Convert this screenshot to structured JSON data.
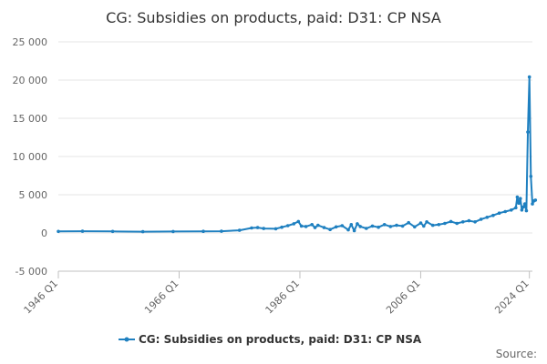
{
  "chart_data": {
    "type": "line",
    "title": "CG: Subsidies on products, paid: D31: CP NSA",
    "xlabel": "",
    "ylabel": "",
    "x_tick_labels": [
      "1946 Q1",
      "1966 Q1",
      "1986 Q1",
      "2006 Q1",
      "2024 Q1"
    ],
    "x_tick_years": [
      1946,
      1966,
      1986,
      2006,
      2024
    ],
    "xlim": [
      1946,
      2024.5
    ],
    "y_tick_values": [
      -5000,
      0,
      5000,
      10000,
      15000,
      20000,
      25000
    ],
    "y_tick_labels": [
      "-5 000",
      "0",
      "5 000",
      "10 000",
      "15 000",
      "20 000",
      "25 000"
    ],
    "ylim": [
      -5000,
      25000
    ],
    "grid": true,
    "legend_position": "bottom",
    "series": [
      {
        "name": "CG: Subsidies on products, paid: D31: CP NSA",
        "color": "#1f80c0",
        "points": [
          [
            1946,
            200
          ],
          [
            1950,
            230
          ],
          [
            1955,
            200
          ],
          [
            1960,
            170
          ],
          [
            1965,
            190
          ],
          [
            1970,
            210
          ],
          [
            1973,
            230
          ],
          [
            1976,
            350
          ],
          [
            1978,
            650
          ],
          [
            1979,
            700
          ],
          [
            1980,
            580
          ],
          [
            1982,
            550
          ],
          [
            1983,
            750
          ],
          [
            1984,
            950
          ],
          [
            1985,
            1200
          ],
          [
            1985.75,
            1500
          ],
          [
            1986.25,
            900
          ],
          [
            1987,
            850
          ],
          [
            1988,
            1100
          ],
          [
            1988.5,
            700
          ],
          [
            1989,
            1000
          ],
          [
            1990,
            700
          ],
          [
            1991,
            450
          ],
          [
            1992,
            800
          ],
          [
            1993,
            950
          ],
          [
            1994,
            400
          ],
          [
            1994.5,
            1100
          ],
          [
            1995,
            300
          ],
          [
            1995.5,
            1200
          ],
          [
            1996,
            850
          ],
          [
            1997,
            600
          ],
          [
            1998,
            900
          ],
          [
            1999,
            750
          ],
          [
            2000,
            1100
          ],
          [
            2001,
            850
          ],
          [
            2002,
            1000
          ],
          [
            2003,
            900
          ],
          [
            2004,
            1350
          ],
          [
            2005,
            800
          ],
          [
            2006,
            1300
          ],
          [
            2006.5,
            900
          ],
          [
            2007,
            1450
          ],
          [
            2008,
            1000
          ],
          [
            2009,
            1100
          ],
          [
            2010,
            1250
          ],
          [
            2011,
            1500
          ],
          [
            2012,
            1250
          ],
          [
            2013,
            1450
          ],
          [
            2014,
            1600
          ],
          [
            2015,
            1450
          ],
          [
            2016,
            1800
          ],
          [
            2017,
            2050
          ],
          [
            2018,
            2300
          ],
          [
            2019,
            2600
          ],
          [
            2020,
            2800
          ],
          [
            2021,
            3000
          ],
          [
            2021.75,
            3300
          ],
          [
            2022,
            4700
          ],
          [
            2022.25,
            3900
          ],
          [
            2022.5,
            4500
          ],
          [
            2022.75,
            3000
          ],
          [
            2023,
            3400
          ],
          [
            2023.25,
            3800
          ],
          [
            2023.5,
            2900
          ],
          [
            2023.75,
            13200
          ],
          [
            2024,
            20400
          ],
          [
            2024.25,
            7400
          ],
          [
            2024.5,
            3800
          ],
          [
            2024.75,
            4200
          ],
          [
            2025,
            4300
          ]
        ]
      }
    ]
  },
  "footer": {
    "source_label": "Source:"
  }
}
